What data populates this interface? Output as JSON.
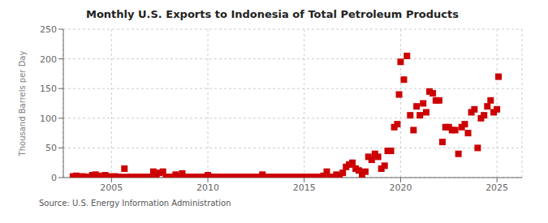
{
  "chart_data": {
    "type": "scatter",
    "title": "Monthly U.S. Exports to Indonesia of Total Petroleum Products",
    "y_label": "Thousand Barrels per Day",
    "annotations": [
      "Source: U.S. Energy Information Administration"
    ],
    "color": "#cc0000",
    "marker": "square",
    "grid": true,
    "xlim": [
      2002.5,
      2026.3
    ],
    "xticks": [
      2005,
      2010,
      2015,
      2020,
      2025
    ],
    "ylim": [
      0,
      250
    ],
    "yticks": [
      0,
      50,
      100,
      150,
      200,
      250
    ],
    "x": [
      2003.0,
      2003.17,
      2003.33,
      2003.5,
      2003.67,
      2003.83,
      2004.0,
      2004.17,
      2004.33,
      2004.5,
      2004.67,
      2004.83,
      2005.0,
      2005.17,
      2005.33,
      2005.5,
      2005.67,
      2005.83,
      2006.0,
      2006.17,
      2006.33,
      2006.5,
      2006.67,
      2006.83,
      2007.0,
      2007.17,
      2007.33,
      2007.5,
      2007.67,
      2007.83,
      2008.0,
      2008.17,
      2008.33,
      2008.5,
      2008.67,
      2008.83,
      2009.0,
      2009.17,
      2009.33,
      2009.5,
      2009.67,
      2009.83,
      2010.0,
      2010.17,
      2010.33,
      2010.5,
      2010.67,
      2010.83,
      2011.0,
      2011.17,
      2011.33,
      2011.5,
      2011.67,
      2011.83,
      2012.0,
      2012.17,
      2012.33,
      2012.5,
      2012.67,
      2012.83,
      2013.0,
      2013.17,
      2013.33,
      2013.5,
      2013.67,
      2013.83,
      2014.0,
      2014.17,
      2014.33,
      2014.5,
      2014.67,
      2014.83,
      2015.0,
      2015.17,
      2015.33,
      2015.5,
      2015.67,
      2015.83,
      2016.0,
      2016.17,
      2016.33,
      2016.5,
      2016.67,
      2016.83,
      2017.0,
      2017.17,
      2017.33,
      2017.5,
      2017.67,
      2017.83,
      2018.0,
      2018.17,
      2018.33,
      2018.5,
      2018.67,
      2018.83,
      2019.0,
      2019.17,
      2019.33,
      2019.5,
      2019.67,
      2019.83,
      2019.92,
      2020.0,
      2020.17,
      2020.33,
      2020.5,
      2020.67,
      2020.83,
      2021.0,
      2021.17,
      2021.33,
      2021.5,
      2021.67,
      2021.83,
      2022.0,
      2022.17,
      2022.33,
      2022.5,
      2022.67,
      2022.83,
      2023.0,
      2023.17,
      2023.33,
      2023.5,
      2023.67,
      2023.83,
      2024.0,
      2024.17,
      2024.33,
      2024.5,
      2024.67,
      2024.83,
      2025.0,
      2025.08
    ],
    "values": [
      2,
      3,
      1,
      2,
      1,
      1,
      4,
      5,
      3,
      1,
      4,
      2,
      1,
      2,
      1,
      1,
      15,
      1,
      1,
      1,
      1,
      1,
      1,
      1,
      1,
      10,
      1,
      8,
      10,
      1,
      1,
      1,
      5,
      1,
      7,
      1,
      1,
      1,
      1,
      1,
      1,
      1,
      4,
      1,
      1,
      1,
      1,
      1,
      1,
      1,
      1,
      1,
      1,
      1,
      1,
      1,
      1,
      1,
      1,
      5,
      1,
      1,
      1,
      1,
      1,
      1,
      1,
      1,
      1,
      1,
      1,
      1,
      1,
      1,
      1,
      1,
      1,
      1,
      3,
      10,
      1,
      1,
      5,
      1,
      8,
      18,
      22,
      25,
      15,
      12,
      5,
      10,
      35,
      30,
      40,
      35,
      15,
      20,
      45,
      45,
      85,
      90,
      140,
      195,
      165,
      205,
      105,
      80,
      120,
      105,
      125,
      110,
      145,
      142,
      130,
      130,
      60,
      85,
      85,
      80,
      80,
      40,
      85,
      90,
      75,
      110,
      115,
      50,
      100,
      105,
      120,
      130,
      110,
      115,
      170
    ]
  }
}
